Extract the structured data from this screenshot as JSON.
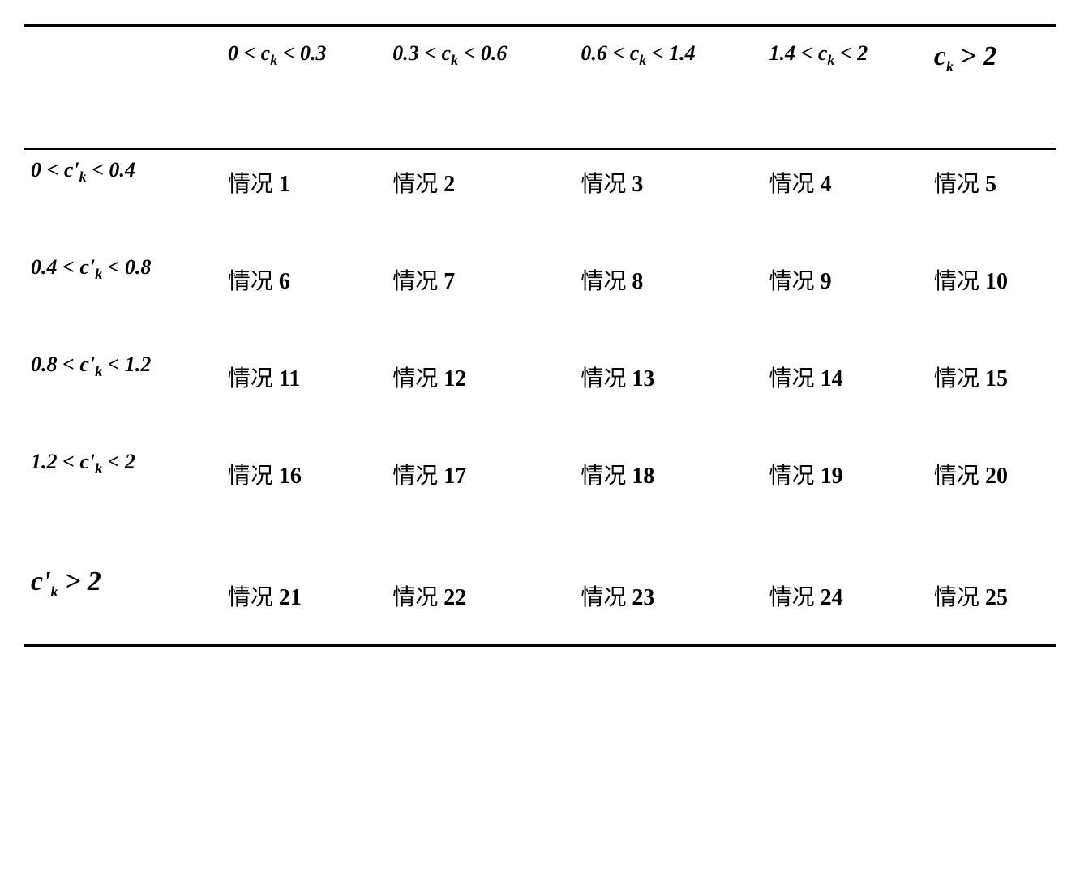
{
  "table": {
    "type": "table",
    "background_color": "#ffffff",
    "border_color": "#000000",
    "border_top_width": 3,
    "border_header_bottom_width": 2,
    "border_bottom_width": 3,
    "header_fontsize": 26,
    "header_last_fontsize": 34,
    "cell_fontsize": 28,
    "rowhead_fontsize": 26,
    "rowhead_last_fontsize": 34,
    "text_color": "#000000",
    "columns": [
      {
        "html": ""
      },
      {
        "html": "0 < <i>c</i><sub><i>k</i></sub> < 0.3"
      },
      {
        "html": "0.3 < <i>c</i><sub><i>k</i></sub> < 0.6"
      },
      {
        "html": "0.6 < <i>c</i><sub><i>k</i></sub> < 1.4"
      },
      {
        "html": "1.4 < <i>c</i><sub><i>k</i></sub> < 2"
      },
      {
        "html": "<i>c</i><sub><i>k</i></sub> > 2",
        "class": "last"
      }
    ],
    "row_headers": [
      {
        "html": "0 < <i>c'</i><sub><i>k</i></sub> < 0.4"
      },
      {
        "html": "0.4 < <i>c'</i><sub><i>k</i></sub> < 0.8"
      },
      {
        "html": "0.8 < <i>c'</i><sub><i>k</i></sub> < 1.2"
      },
      {
        "html": "1.2 < <i>c'</i><sub><i>k</i></sub> < 2"
      },
      {
        "html": "<i>c'</i><sub><i>k</i></sub> > 2",
        "class": "last"
      }
    ],
    "cell_prefix": "情况",
    "rows": [
      [
        "1",
        "2",
        "3",
        "4",
        "5"
      ],
      [
        "6",
        "7",
        "8",
        "9",
        "10"
      ],
      [
        "11",
        "12",
        "13",
        "14",
        "15"
      ],
      [
        "16",
        "17",
        "18",
        "19",
        "20"
      ],
      [
        "21",
        "22",
        "23",
        "24",
        "25"
      ]
    ]
  }
}
